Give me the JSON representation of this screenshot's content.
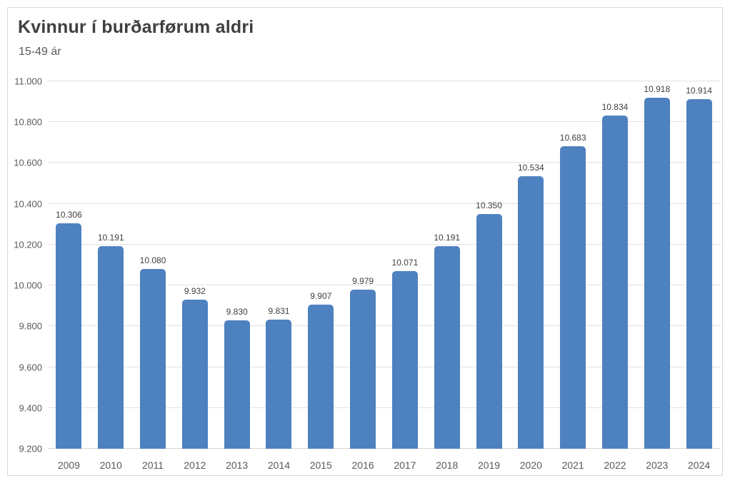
{
  "header": {
    "title": "Kvinnur í burðarførum aldri",
    "subtitle": "15-49 ár"
  },
  "chart_data": {
    "type": "bar",
    "title": "Kvinnur í burðarførum aldri",
    "subtitle": "15-49 ár",
    "xlabel": "",
    "ylabel": "",
    "legend": "none",
    "grid": "horizontal",
    "categories": [
      "2009",
      "2010",
      "2011",
      "2012",
      "2013",
      "2014",
      "2015",
      "2016",
      "2017",
      "2018",
      "2019",
      "2020",
      "2021",
      "2022",
      "2023",
      "2024"
    ],
    "values": [
      10306,
      10191,
      10080,
      9932,
      9830,
      9831,
      9907,
      9979,
      10071,
      10191,
      10350,
      10534,
      10683,
      10834,
      10918,
      10914
    ],
    "value_labels": [
      "10.306",
      "10.191",
      "10.080",
      "9.932",
      "9.830",
      "9.831",
      "9.907",
      "9.979",
      "10.071",
      "10.191",
      "10.350",
      "10.534",
      "10.683",
      "10.834",
      "10.918",
      "10.914"
    ],
    "ylim": [
      9200,
      11000
    ],
    "ytick_step": 200,
    "ytick_labels": [
      "9.200",
      "9.400",
      "9.600",
      "9.800",
      "10.000",
      "10.200",
      "10.400",
      "10.600",
      "10.800",
      "11.000"
    ],
    "colors": {
      "bar": "#4e81bf",
      "title": "#404040",
      "subtitle": "#595959",
      "axis_labels": "#595959",
      "data_labels": "#3f3f3f",
      "gridline": "#e2e2e2",
      "card_border": "#d9d9d9",
      "background": "#ffffff"
    }
  }
}
